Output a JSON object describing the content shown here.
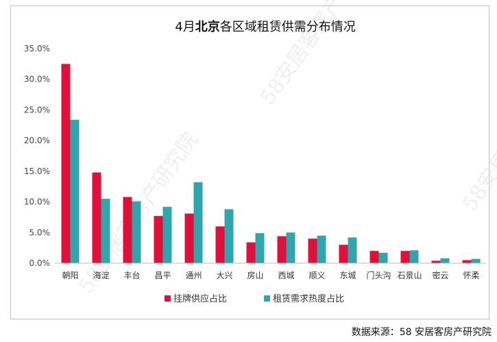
{
  "chart_data": {
    "type": "bar",
    "title_parts": [
      "4月",
      "北京",
      "各区域租赁供需分布情况"
    ],
    "categories": [
      "朝阳",
      "海淀",
      "丰台",
      "昌平",
      "通州",
      "大兴",
      "房山",
      "西城",
      "顺义",
      "东城",
      "门头沟",
      "石景山",
      "密云",
      "怀柔"
    ],
    "series": [
      {
        "name": "挂牌供应占比",
        "color": "#e0103a",
        "values": [
          32.5,
          14.8,
          10.8,
          7.7,
          8.1,
          6.0,
          3.4,
          4.4,
          4.0,
          3.0,
          2.0,
          2.0,
          0.4,
          0.5
        ]
      },
      {
        "name": "租赁需求热度占比",
        "color": "#2fa6ad",
        "values": [
          23.4,
          10.5,
          10.1,
          9.2,
          13.2,
          8.8,
          4.9,
          5.0,
          4.5,
          4.2,
          1.7,
          2.1,
          0.8,
          0.7
        ]
      }
    ],
    "yticks": [
      "0.0%",
      "5.0%",
      "10.0%",
      "15.0%",
      "20.0%",
      "25.0%",
      "30.0%",
      "35.0%"
    ],
    "ylim": [
      0,
      35
    ],
    "grid": false,
    "legend_position": "bottom"
  },
  "source": "数据来源：58 安居客房产研究院",
  "watermark_text": "58安居客房产研究院"
}
